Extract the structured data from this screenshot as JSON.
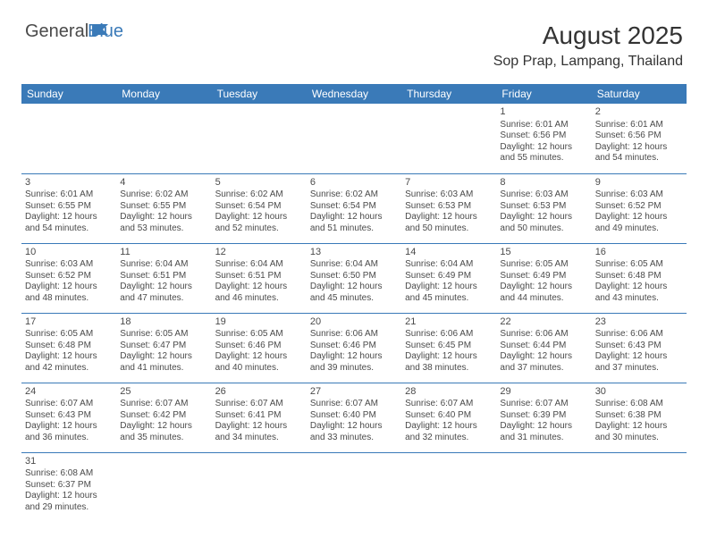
{
  "logo": {
    "text_general": "General",
    "text_blue": "Blue",
    "flag_color": "#3a7ab8"
  },
  "title": "August 2025",
  "location": "Sop Prap, Lampang, Thailand",
  "header_bg": "#3a7ab8",
  "header_text_color": "#ffffff",
  "cell_border_color": "#3a7ab8",
  "text_color": "#4a4a4a",
  "day_headers": [
    "Sunday",
    "Monday",
    "Tuesday",
    "Wednesday",
    "Thursday",
    "Friday",
    "Saturday"
  ],
  "weeks": [
    [
      null,
      null,
      null,
      null,
      null,
      {
        "day": "1",
        "sunrise": "Sunrise: 6:01 AM",
        "sunset": "Sunset: 6:56 PM",
        "daylight": "Daylight: 12 hours and 55 minutes."
      },
      {
        "day": "2",
        "sunrise": "Sunrise: 6:01 AM",
        "sunset": "Sunset: 6:56 PM",
        "daylight": "Daylight: 12 hours and 54 minutes."
      }
    ],
    [
      {
        "day": "3",
        "sunrise": "Sunrise: 6:01 AM",
        "sunset": "Sunset: 6:55 PM",
        "daylight": "Daylight: 12 hours and 54 minutes."
      },
      {
        "day": "4",
        "sunrise": "Sunrise: 6:02 AM",
        "sunset": "Sunset: 6:55 PM",
        "daylight": "Daylight: 12 hours and 53 minutes."
      },
      {
        "day": "5",
        "sunrise": "Sunrise: 6:02 AM",
        "sunset": "Sunset: 6:54 PM",
        "daylight": "Daylight: 12 hours and 52 minutes."
      },
      {
        "day": "6",
        "sunrise": "Sunrise: 6:02 AM",
        "sunset": "Sunset: 6:54 PM",
        "daylight": "Daylight: 12 hours and 51 minutes."
      },
      {
        "day": "7",
        "sunrise": "Sunrise: 6:03 AM",
        "sunset": "Sunset: 6:53 PM",
        "daylight": "Daylight: 12 hours and 50 minutes."
      },
      {
        "day": "8",
        "sunrise": "Sunrise: 6:03 AM",
        "sunset": "Sunset: 6:53 PM",
        "daylight": "Daylight: 12 hours and 50 minutes."
      },
      {
        "day": "9",
        "sunrise": "Sunrise: 6:03 AM",
        "sunset": "Sunset: 6:52 PM",
        "daylight": "Daylight: 12 hours and 49 minutes."
      }
    ],
    [
      {
        "day": "10",
        "sunrise": "Sunrise: 6:03 AM",
        "sunset": "Sunset: 6:52 PM",
        "daylight": "Daylight: 12 hours and 48 minutes."
      },
      {
        "day": "11",
        "sunrise": "Sunrise: 6:04 AM",
        "sunset": "Sunset: 6:51 PM",
        "daylight": "Daylight: 12 hours and 47 minutes."
      },
      {
        "day": "12",
        "sunrise": "Sunrise: 6:04 AM",
        "sunset": "Sunset: 6:51 PM",
        "daylight": "Daylight: 12 hours and 46 minutes."
      },
      {
        "day": "13",
        "sunrise": "Sunrise: 6:04 AM",
        "sunset": "Sunset: 6:50 PM",
        "daylight": "Daylight: 12 hours and 45 minutes."
      },
      {
        "day": "14",
        "sunrise": "Sunrise: 6:04 AM",
        "sunset": "Sunset: 6:49 PM",
        "daylight": "Daylight: 12 hours and 45 minutes."
      },
      {
        "day": "15",
        "sunrise": "Sunrise: 6:05 AM",
        "sunset": "Sunset: 6:49 PM",
        "daylight": "Daylight: 12 hours and 44 minutes."
      },
      {
        "day": "16",
        "sunrise": "Sunrise: 6:05 AM",
        "sunset": "Sunset: 6:48 PM",
        "daylight": "Daylight: 12 hours and 43 minutes."
      }
    ],
    [
      {
        "day": "17",
        "sunrise": "Sunrise: 6:05 AM",
        "sunset": "Sunset: 6:48 PM",
        "daylight": "Daylight: 12 hours and 42 minutes."
      },
      {
        "day": "18",
        "sunrise": "Sunrise: 6:05 AM",
        "sunset": "Sunset: 6:47 PM",
        "daylight": "Daylight: 12 hours and 41 minutes."
      },
      {
        "day": "19",
        "sunrise": "Sunrise: 6:05 AM",
        "sunset": "Sunset: 6:46 PM",
        "daylight": "Daylight: 12 hours and 40 minutes."
      },
      {
        "day": "20",
        "sunrise": "Sunrise: 6:06 AM",
        "sunset": "Sunset: 6:46 PM",
        "daylight": "Daylight: 12 hours and 39 minutes."
      },
      {
        "day": "21",
        "sunrise": "Sunrise: 6:06 AM",
        "sunset": "Sunset: 6:45 PM",
        "daylight": "Daylight: 12 hours and 38 minutes."
      },
      {
        "day": "22",
        "sunrise": "Sunrise: 6:06 AM",
        "sunset": "Sunset: 6:44 PM",
        "daylight": "Daylight: 12 hours and 37 minutes."
      },
      {
        "day": "23",
        "sunrise": "Sunrise: 6:06 AM",
        "sunset": "Sunset: 6:43 PM",
        "daylight": "Daylight: 12 hours and 37 minutes."
      }
    ],
    [
      {
        "day": "24",
        "sunrise": "Sunrise: 6:07 AM",
        "sunset": "Sunset: 6:43 PM",
        "daylight": "Daylight: 12 hours and 36 minutes."
      },
      {
        "day": "25",
        "sunrise": "Sunrise: 6:07 AM",
        "sunset": "Sunset: 6:42 PM",
        "daylight": "Daylight: 12 hours and 35 minutes."
      },
      {
        "day": "26",
        "sunrise": "Sunrise: 6:07 AM",
        "sunset": "Sunset: 6:41 PM",
        "daylight": "Daylight: 12 hours and 34 minutes."
      },
      {
        "day": "27",
        "sunrise": "Sunrise: 6:07 AM",
        "sunset": "Sunset: 6:40 PM",
        "daylight": "Daylight: 12 hours and 33 minutes."
      },
      {
        "day": "28",
        "sunrise": "Sunrise: 6:07 AM",
        "sunset": "Sunset: 6:40 PM",
        "daylight": "Daylight: 12 hours and 32 minutes."
      },
      {
        "day": "29",
        "sunrise": "Sunrise: 6:07 AM",
        "sunset": "Sunset: 6:39 PM",
        "daylight": "Daylight: 12 hours and 31 minutes."
      },
      {
        "day": "30",
        "sunrise": "Sunrise: 6:08 AM",
        "sunset": "Sunset: 6:38 PM",
        "daylight": "Daylight: 12 hours and 30 minutes."
      }
    ],
    [
      {
        "day": "31",
        "sunrise": "Sunrise: 6:08 AM",
        "sunset": "Sunset: 6:37 PM",
        "daylight": "Daylight: 12 hours and 29 minutes."
      },
      null,
      null,
      null,
      null,
      null,
      null
    ]
  ]
}
